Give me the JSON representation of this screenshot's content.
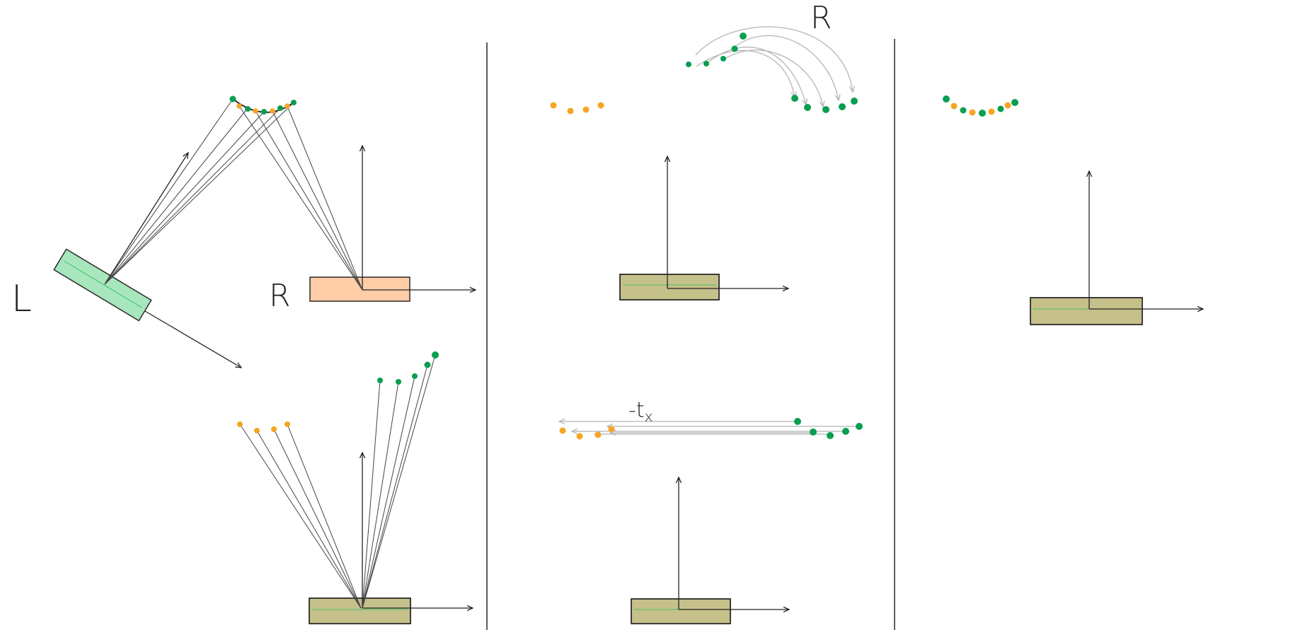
{
  "labels": {
    "left_camera": "L",
    "right_camera": "R",
    "rotation": "R",
    "translation": "-t",
    "translation_sub": "x"
  },
  "colors": {
    "left_fill": "#a8e6bd",
    "left_stroke": "#2a2a2a",
    "right_fill": "#ffcda8",
    "merged_fill": "#c6c08a",
    "green_point": "#0a9e50",
    "orange_point": "#f4a623",
    "ray": "#444444",
    "arrow_gray": "#b5b5b5",
    "green_line": "#3cc46b"
  },
  "icons": {
    "left_camera": "rectangle-camera-icon",
    "right_camera": "rectangle-camera-icon",
    "points": "dot-icon"
  }
}
